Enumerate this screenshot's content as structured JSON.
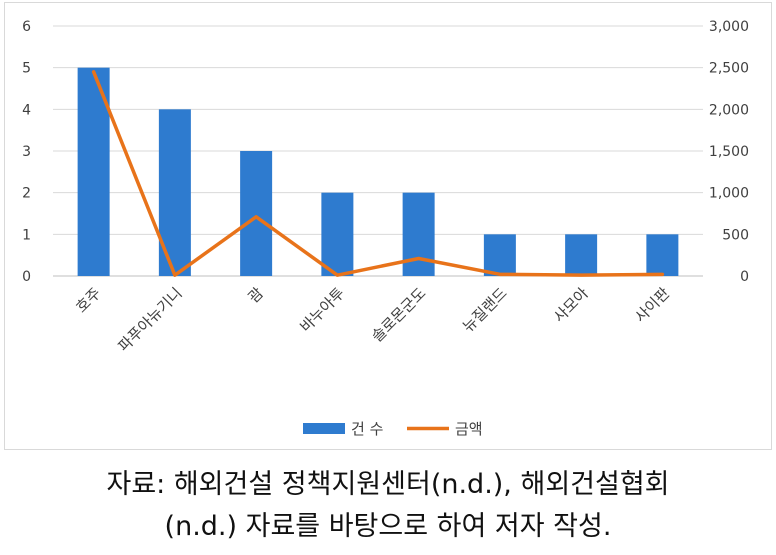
{
  "chart_data": {
    "type": "bar",
    "categories": [
      "호주",
      "파푸아뉴기니",
      "괌",
      "바누아투",
      "솔로몬군도",
      "뉴질랜드",
      "사모아",
      "사이판"
    ],
    "series": [
      {
        "name": "건 수",
        "type": "bar",
        "axis": "left",
        "color": "#2E7BCF",
        "values": [
          5,
          4,
          3,
          2,
          2,
          1,
          1,
          1
        ]
      },
      {
        "name": "금액",
        "type": "line",
        "axis": "right",
        "color": "#E8731A",
        "values": [
          2450,
          10,
          710,
          10,
          210,
          20,
          10,
          20
        ]
      }
    ],
    "y_left": {
      "range": [
        0,
        6
      ],
      "ticks": [
        "0",
        "1",
        "2",
        "3",
        "4",
        "5",
        "6"
      ]
    },
    "y_right": {
      "range": [
        0,
        3000
      ],
      "ticks": [
        "0",
        "500",
        "1,000",
        "1,500",
        "2,000",
        "2,500",
        "3,000"
      ]
    },
    "grid": true,
    "legend_position": "bottom"
  },
  "caption": {
    "line1": "자료:  해외건설  정책지원센터(n.d.),  해외건설협회",
    "line2": "(n.d.) 자료를 바탕으로 하여 저자 작성."
  }
}
